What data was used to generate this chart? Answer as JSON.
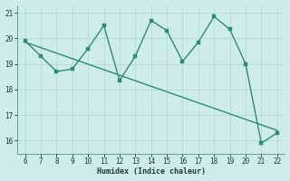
{
  "x": [
    6,
    7,
    8,
    9,
    10,
    11,
    12,
    13,
    14,
    15,
    16,
    17,
    18,
    19,
    20,
    21,
    22
  ],
  "y": [
    19.9,
    19.3,
    18.7,
    18.8,
    19.6,
    20.5,
    18.35,
    19.3,
    20.7,
    20.3,
    19.1,
    19.85,
    20.85,
    20.35,
    19.0,
    15.9,
    16.3
  ],
  "trend_x": [
    6,
    22
  ],
  "trend_y": [
    19.85,
    16.4
  ],
  "line_color": "#2e8b72",
  "bg_color": "#ceecea",
  "grid_color": "#b8dbd8",
  "xlabel": "Humidex (Indice chaleur)",
  "xlim": [
    5.5,
    22.5
  ],
  "ylim": [
    15.5,
    21.3
  ],
  "xticks": [
    6,
    7,
    8,
    9,
    10,
    11,
    12,
    13,
    14,
    15,
    16,
    17,
    18,
    19,
    20,
    21,
    22
  ],
  "yticks": [
    16,
    17,
    18,
    19,
    20,
    21
  ],
  "markersize": 2.5,
  "linewidth": 1.0
}
